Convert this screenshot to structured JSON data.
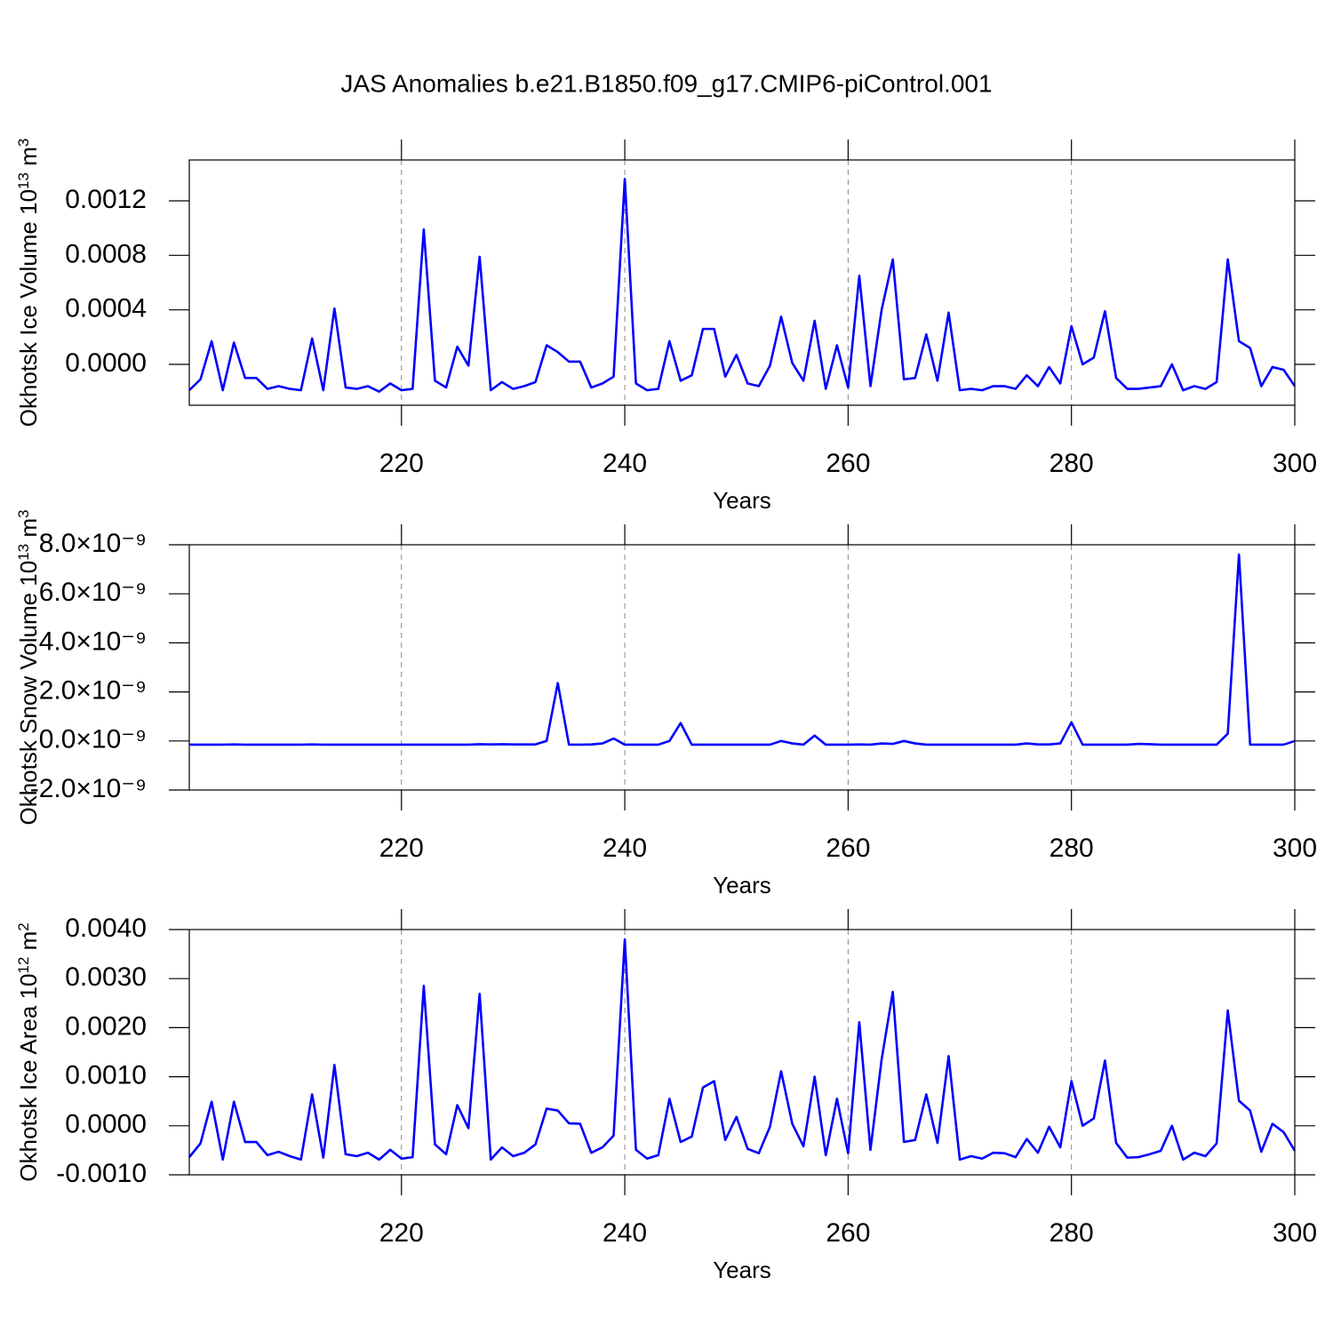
{
  "chart_data": [
    {
      "type": "line",
      "title": "JAS Anomalies b.e21.B1850.f09_g17.CMIP6-piControl.001",
      "ylabel": {
        "text": "Okhotsk Ice Volume 10",
        "sup": "13",
        "unit": " m",
        "unit_sup": "3"
      },
      "xlabel": "Years",
      "color": "#0000ff",
      "grid": true,
      "xlim": [
        201,
        300
      ],
      "xticks": [
        220,
        240,
        260,
        280,
        300
      ],
      "ylim": [
        -0.0003,
        0.0015
      ],
      "yticks": [
        {
          "value": 0,
          "label": "0.0000"
        },
        {
          "value": 0.0004,
          "label": "0.0004"
        },
        {
          "value": 0.0008,
          "label": "0.0008"
        },
        {
          "value": 0.0012,
          "label": "0.0012"
        }
      ],
      "x": [
        201,
        202,
        203,
        204,
        205,
        206,
        207,
        208,
        209,
        210,
        211,
        212,
        213,
        214,
        215,
        216,
        217,
        218,
        219,
        220,
        221,
        222,
        223,
        224,
        225,
        226,
        227,
        228,
        229,
        230,
        231,
        232,
        233,
        234,
        235,
        236,
        237,
        238,
        239,
        240,
        241,
        242,
        243,
        244,
        245,
        246,
        247,
        248,
        249,
        250,
        251,
        252,
        253,
        254,
        255,
        256,
        257,
        258,
        259,
        260,
        261,
        262,
        263,
        264,
        265,
        266,
        267,
        268,
        269,
        270,
        271,
        272,
        273,
        274,
        275,
        276,
        277,
        278,
        279,
        280,
        281,
        282,
        283,
        284,
        285,
        286,
        287,
        288,
        289,
        290,
        291,
        292,
        293,
        294,
        295,
        296,
        297,
        298,
        299,
        300
      ],
      "values": [
        -0.00019,
        -0.00011,
        0.00017,
        -0.00019,
        0.00016,
        -0.0001,
        -0.0001,
        -0.00018,
        -0.00016,
        -0.00018,
        -0.00019,
        0.00019,
        -0.00019,
        0.00041,
        -0.00017,
        -0.00018,
        -0.00016,
        -0.0002,
        -0.00014,
        -0.00019,
        -0.00018,
        0.00099,
        -0.00012,
        -0.00017,
        0.00013,
        -1e-05,
        0.00079,
        -0.00019,
        -0.00013,
        -0.00018,
        -0.00016,
        -0.00013,
        0.00014,
        9e-05,
        2e-05,
        2e-05,
        -0.00017,
        -0.00014,
        -9e-05,
        0.00136,
        -0.00014,
        -0.00019,
        -0.00018,
        0.00017,
        -0.00012,
        -8e-05,
        0.00026,
        0.00026,
        -9e-05,
        7e-05,
        -0.00014,
        -0.00016,
        -1e-05,
        0.00035,
        1e-05,
        -0.00012,
        0.00032,
        -0.00018,
        0.00014,
        -0.00017,
        0.00065,
        -0.00016,
        0.0004,
        0.00077,
        -0.00011,
        -0.0001,
        0.00022,
        -0.00012,
        0.00038,
        -0.00019,
        -0.00018,
        -0.00019,
        -0.00016,
        -0.00016,
        -0.00018,
        -8e-05,
        -0.00016,
        -2e-05,
        -0.00014,
        0.00028,
        0,
        5e-05,
        0.00039,
        -0.0001,
        -0.00018,
        -0.00018,
        -0.00017,
        -0.00016,
        0,
        -0.00019,
        -0.00016,
        -0.00018,
        -0.00013,
        0.00077,
        0.00017,
        0.00012,
        -0.00016,
        -2e-05,
        -4e-05,
        -0.00016
      ]
    },
    {
      "type": "line",
      "ylabel": {
        "text": "Okhotsk Snow Volume 10",
        "sup": "13",
        "unit": " m",
        "unit_sup": "3"
      },
      "xlabel": "Years",
      "color": "#0000ff",
      "grid": true,
      "xlim": [
        201,
        300
      ],
      "xticks": [
        220,
        240,
        260,
        280,
        300
      ],
      "ylim": [
        -2e-09,
        8e-09
      ],
      "yticks": [
        {
          "value": -2e-09,
          "label": "-2.0×10⁻⁹"
        },
        {
          "value": 0,
          "label": "0.0×10⁻⁹"
        },
        {
          "value": 2e-09,
          "label": "2.0×10⁻⁹"
        },
        {
          "value": 4e-09,
          "label": "4.0×10⁻⁹"
        },
        {
          "value": 6e-09,
          "label": "6.0×10⁻⁹"
        },
        {
          "value": 8e-09,
          "label": "8.0×10⁻⁹"
        }
      ],
      "x": [
        201,
        202,
        203,
        204,
        205,
        206,
        207,
        208,
        209,
        210,
        211,
        212,
        213,
        214,
        215,
        216,
        217,
        218,
        219,
        220,
        221,
        222,
        223,
        224,
        225,
        226,
        227,
        228,
        229,
        230,
        231,
        232,
        233,
        234,
        235,
        236,
        237,
        238,
        239,
        240,
        241,
        242,
        243,
        244,
        245,
        246,
        247,
        248,
        249,
        250,
        251,
        252,
        253,
        254,
        255,
        256,
        257,
        258,
        259,
        260,
        261,
        262,
        263,
        264,
        265,
        266,
        267,
        268,
        269,
        270,
        271,
        272,
        273,
        274,
        275,
        276,
        277,
        278,
        279,
        280,
        281,
        282,
        283,
        284,
        285,
        286,
        287,
        288,
        289,
        290,
        291,
        292,
        293,
        294,
        295,
        296,
        297,
        298,
        299,
        300
      ],
      "values": [
        -1.5e-10,
        -1.5e-10,
        -1.5e-10,
        -1.5e-10,
        -1.4e-10,
        -1.5e-10,
        -1.5e-10,
        -1.5e-10,
        -1.5e-10,
        -1.5e-10,
        -1.5e-10,
        -1.4e-10,
        -1.5e-10,
        -1.5e-10,
        -1.5e-10,
        -1.5e-10,
        -1.5e-10,
        -1.5e-10,
        -1.5e-10,
        -1.5e-10,
        -1.5e-10,
        -1.5e-10,
        -1.5e-10,
        -1.5e-10,
        -1.5e-10,
        -1.5e-10,
        -1.3e-10,
        -1.4e-10,
        -1.3e-10,
        -1.4e-10,
        -1.4e-10,
        -1.4e-10,
        0,
        2.36e-09,
        -1.5e-10,
        -1.5e-10,
        -1.4e-10,
        -1e-10,
        1e-10,
        -1.5e-10,
        -1.5e-10,
        -1.5e-10,
        -1.5e-10,
        0,
        7.3e-10,
        -1.5e-10,
        -1.5e-10,
        -1.5e-10,
        -1.5e-10,
        -1.5e-10,
        -1.5e-10,
        -1.5e-10,
        -1.5e-10,
        0,
        -1e-10,
        -1.5e-10,
        2.2e-10,
        -1.5e-10,
        -1.5e-10,
        -1.5e-10,
        -1.4e-10,
        -1.5e-10,
        -1e-10,
        -1.2e-10,
        0,
        -1e-10,
        -1.5e-10,
        -1.5e-10,
        -1.5e-10,
        -1.5e-10,
        -1.5e-10,
        -1.5e-10,
        -1.5e-10,
        -1.5e-10,
        -1.5e-10,
        -1e-10,
        -1.4e-10,
        -1.4e-10,
        -1e-10,
        7.6e-10,
        -1.5e-10,
        -1.5e-10,
        -1.5e-10,
        -1.5e-10,
        -1.5e-10,
        -1.2e-10,
        -1.3e-10,
        -1.5e-10,
        -1.5e-10,
        -1.5e-10,
        -1.5e-10,
        -1.5e-10,
        -1.5e-10,
        3e-10,
        7.6e-09,
        -1.5e-10,
        -1.5e-10,
        -1.5e-10,
        -1.5e-10,
        0
      ]
    },
    {
      "type": "line",
      "ylabel": {
        "text": "Okhotsk Ice Area 10",
        "sup": "12",
        "unit": " m",
        "unit_sup": "2"
      },
      "xlabel": "Years",
      "color": "#0000ff",
      "grid": true,
      "xlim": [
        201,
        300
      ],
      "xticks": [
        220,
        240,
        260,
        280,
        300
      ],
      "ylim": [
        -0.001,
        0.004
      ],
      "yticks": [
        {
          "value": -0.001,
          "label": "-0.0010"
        },
        {
          "value": 0,
          "label": "0.0000"
        },
        {
          "value": 0.001,
          "label": "0.0010"
        },
        {
          "value": 0.002,
          "label": "0.0020"
        },
        {
          "value": 0.003,
          "label": "0.0030"
        },
        {
          "value": 0.004,
          "label": "0.0040"
        }
      ],
      "x": [
        201,
        202,
        203,
        204,
        205,
        206,
        207,
        208,
        209,
        210,
        211,
        212,
        213,
        214,
        215,
        216,
        217,
        218,
        219,
        220,
        221,
        222,
        223,
        224,
        225,
        226,
        227,
        228,
        229,
        230,
        231,
        232,
        233,
        234,
        235,
        236,
        237,
        238,
        239,
        240,
        241,
        242,
        243,
        244,
        245,
        246,
        247,
        248,
        249,
        250,
        251,
        252,
        253,
        254,
        255,
        256,
        257,
        258,
        259,
        260,
        261,
        262,
        263,
        264,
        265,
        266,
        267,
        268,
        269,
        270,
        271,
        272,
        273,
        274,
        275,
        276,
        277,
        278,
        279,
        280,
        281,
        282,
        283,
        284,
        285,
        286,
        287,
        288,
        289,
        290,
        291,
        292,
        293,
        294,
        295,
        296,
        297,
        298,
        299,
        300
      ],
      "values": [
        -0.00064,
        -0.00036,
        0.00049,
        -0.00069,
        0.00049,
        -0.00033,
        -0.00033,
        -0.0006,
        -0.00053,
        -0.00062,
        -0.00069,
        0.00064,
        -0.00065,
        0.00124,
        -0.00058,
        -0.00062,
        -0.00055,
        -0.00069,
        -0.00049,
        -0.00067,
        -0.00064,
        0.00285,
        -0.00038,
        -0.00058,
        0.00042,
        -5e-05,
        0.00269,
        -0.00069,
        -0.00044,
        -0.00062,
        -0.00055,
        -0.00038,
        0.00035,
        0.00031,
        5e-05,
        4e-05,
        -0.00055,
        -0.00044,
        -0.0002,
        0.0038,
        -0.00049,
        -0.00067,
        -0.0006,
        0.00055,
        -0.00033,
        -0.00022,
        0.00078,
        0.00091,
        -0.00029,
        0.00018,
        -0.00047,
        -0.00056,
        -2e-05,
        0.00111,
        4e-05,
        -0.00042,
        0.001,
        -0.0006,
        0.00055,
        -0.00056,
        0.00211,
        -0.00049,
        0.00135,
        0.00273,
        -0.00033,
        -0.00029,
        0.00064,
        -0.00035,
        0.00142,
        -0.00069,
        -0.00062,
        -0.00067,
        -0.00055,
        -0.00056,
        -0.00064,
        -0.00027,
        -0.00055,
        -2e-05,
        -0.00044,
        0.00091,
        0,
        0.00015,
        0.00133,
        -0.00035,
        -0.00065,
        -0.00064,
        -0.00058,
        -0.00051,
        0,
        -0.00069,
        -0.00055,
        -0.00062,
        -0.00036,
        0.00235,
        0.00051,
        0.00031,
        -0.00053,
        4e-05,
        -0.00013,
        -0.00051
      ]
    }
  ]
}
